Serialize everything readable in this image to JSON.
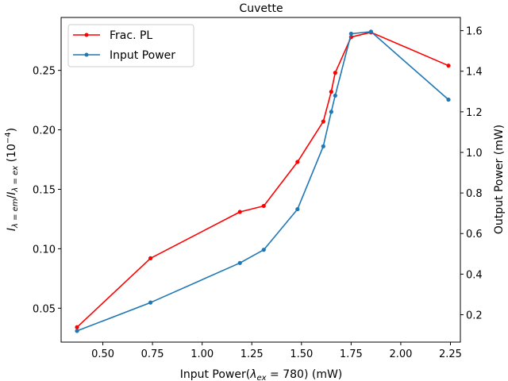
{
  "chart_data": {
    "type": "line",
    "title": "Cuvette",
    "xlabel": "Input Power(λ_ex = 780) (mW)",
    "ylabel_left": "I_λ=em / I_λ=ex (10^-4)",
    "ylabel_right": "Output Power (mW)",
    "xlim": [
      0.29,
      2.3
    ],
    "ylim_left": [
      0.0215,
      0.2945
    ],
    "ylim_right": [
      0.065,
      1.665
    ],
    "x_ticks": [
      0.5,
      0.75,
      1.0,
      1.25,
      1.5,
      1.75,
      2.0,
      2.25
    ],
    "x_tick_labels": [
      "0.50",
      "0.75",
      "1.00",
      "1.25",
      "1.50",
      "1.75",
      "2.00",
      "2.25"
    ],
    "y_left_ticks": [
      0.05,
      0.1,
      0.15,
      0.2,
      0.25
    ],
    "y_left_tick_labels": [
      "0.05",
      "0.10",
      "0.15",
      "0.20",
      "0.25"
    ],
    "y_right_ticks": [
      0.2,
      0.4,
      0.6,
      0.8,
      1.0,
      1.2,
      1.4,
      1.6
    ],
    "y_right_tick_labels": [
      "0.2",
      "0.4",
      "0.6",
      "0.8",
      "1.0",
      "1.2",
      "1.4",
      "1.6"
    ],
    "grid": false,
    "legend_placement": "top-left",
    "series": [
      {
        "name": "Frac. PL",
        "axis": "left",
        "color": "#ff0000",
        "x": [
          0.37,
          0.74,
          1.19,
          1.31,
          1.48,
          1.61,
          1.65,
          1.67,
          1.75,
          1.85,
          2.24
        ],
        "y": [
          0.034,
          0.092,
          0.131,
          0.136,
          0.173,
          0.207,
          0.232,
          0.248,
          0.278,
          0.282,
          0.254
        ]
      },
      {
        "name": "Input Power",
        "axis": "right",
        "color": "#1f77b4",
        "x": [
          0.37,
          0.74,
          1.19,
          1.31,
          1.48,
          1.61,
          1.65,
          1.67,
          1.75,
          1.85,
          2.24
        ],
        "y": [
          0.12,
          0.26,
          0.455,
          0.52,
          0.72,
          1.03,
          1.2,
          1.28,
          1.585,
          1.595,
          1.26
        ]
      }
    ]
  }
}
